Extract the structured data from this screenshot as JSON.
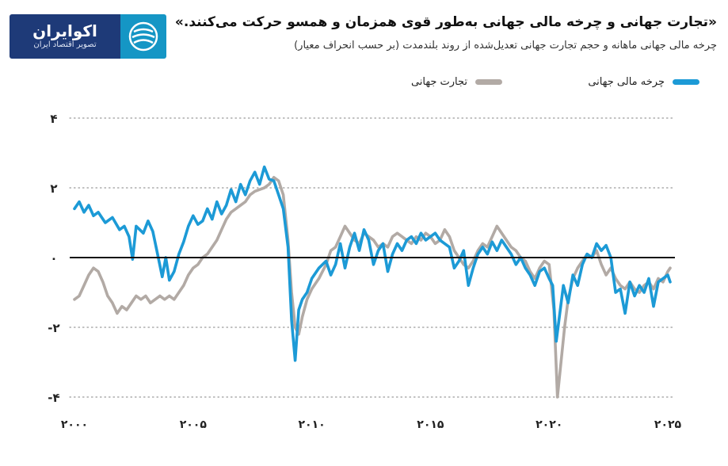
{
  "header": {
    "title": "«تجارت جهانی و چرخه مالی جهانی به‌طور قوی همزمان و همسو حرکت می‌کنند.»",
    "subtitle": "چرخه مالی جهانی ماهانه و حجم تجارت جهانی تعدیل‌شده از روند بلندمدت (بر حسب انحراف معیار)"
  },
  "logo": {
    "name": "اکوایران",
    "tagline": "تصویر اقتصاد ایران"
  },
  "colors": {
    "financial_cycle": "#1c9ad6",
    "world_trade": "#b2aaa5",
    "zero_line": "#111111",
    "grid": "#9a9a9a",
    "brand_dark": "#1e3a78",
    "brand_light": "#1596c5"
  },
  "chart_data": {
    "type": "line",
    "title": "«تجارت جهانی و چرخه مالی جهانی به‌طور قوی همزمان و همسو حرکت می‌کنند.»",
    "subtitle": "چرخه مالی جهانی ماهانه و حجم تجارت جهانی تعدیل‌شده از روند بلندمدت (بر حسب انحراف معیار)",
    "xlim": [
      1999.8,
      2025.3
    ],
    "ylim": [
      -4.5,
      4.5
    ],
    "x_ticks": [
      2000,
      2005,
      2010,
      2015,
      2020,
      2025
    ],
    "x_tick_labels": [
      "۲۰۰۰",
      "۲۰۰۵",
      "۲۰۱۰",
      "۲۰۱۵",
      "۲۰۲۰",
      "۲۰۲۵"
    ],
    "y_ticks": [
      4,
      2,
      0,
      -2,
      -4
    ],
    "y_tick_labels": [
      "۴",
      "۲",
      "۰",
      "-۲",
      "-۴"
    ],
    "grid": "dotted horizontal",
    "legend_position": "top",
    "series": [
      {
        "name": "چرخه مالی جهانی",
        "color": "#1c9ad6",
        "points": [
          [
            2000.0,
            1.4
          ],
          [
            2000.2,
            1.6
          ],
          [
            2000.4,
            1.3
          ],
          [
            2000.6,
            1.5
          ],
          [
            2000.8,
            1.2
          ],
          [
            2001.0,
            1.3
          ],
          [
            2001.3,
            1.0
          ],
          [
            2001.6,
            1.15
          ],
          [
            2001.9,
            0.8
          ],
          [
            2002.1,
            0.9
          ],
          [
            2002.3,
            0.6
          ],
          [
            2002.45,
            -0.05
          ],
          [
            2002.6,
            0.9
          ],
          [
            2002.9,
            0.7
          ],
          [
            2003.1,
            1.05
          ],
          [
            2003.3,
            0.75
          ],
          [
            2003.5,
            0.1
          ],
          [
            2003.7,
            -0.55
          ],
          [
            2003.85,
            0.0
          ],
          [
            2004.0,
            -0.65
          ],
          [
            2004.2,
            -0.4
          ],
          [
            2004.4,
            0.1
          ],
          [
            2004.6,
            0.45
          ],
          [
            2004.8,
            0.9
          ],
          [
            2005.0,
            1.2
          ],
          [
            2005.2,
            0.95
          ],
          [
            2005.4,
            1.05
          ],
          [
            2005.6,
            1.4
          ],
          [
            2005.8,
            1.1
          ],
          [
            2006.0,
            1.6
          ],
          [
            2006.2,
            1.25
          ],
          [
            2006.4,
            1.5
          ],
          [
            2006.6,
            1.95
          ],
          [
            2006.8,
            1.6
          ],
          [
            2007.0,
            2.1
          ],
          [
            2007.2,
            1.8
          ],
          [
            2007.4,
            2.2
          ],
          [
            2007.6,
            2.45
          ],
          [
            2007.8,
            2.1
          ],
          [
            2008.0,
            2.6
          ],
          [
            2008.2,
            2.25
          ],
          [
            2008.4,
            2.2
          ],
          [
            2008.6,
            1.8
          ],
          [
            2008.8,
            1.4
          ],
          [
            2009.0,
            0.3
          ],
          [
            2009.15,
            -1.8
          ],
          [
            2009.3,
            -2.95
          ],
          [
            2009.45,
            -1.5
          ],
          [
            2009.6,
            -1.2
          ],
          [
            2009.8,
            -1.0
          ],
          [
            2010.0,
            -0.6
          ],
          [
            2010.3,
            -0.3
          ],
          [
            2010.6,
            -0.1
          ],
          [
            2010.8,
            -0.5
          ],
          [
            2011.0,
            -0.2
          ],
          [
            2011.2,
            0.4
          ],
          [
            2011.4,
            -0.3
          ],
          [
            2011.6,
            0.3
          ],
          [
            2011.8,
            0.7
          ],
          [
            2012.0,
            0.2
          ],
          [
            2012.2,
            0.8
          ],
          [
            2012.4,
            0.5
          ],
          [
            2012.6,
            -0.2
          ],
          [
            2012.8,
            0.2
          ],
          [
            2013.0,
            0.4
          ],
          [
            2013.2,
            -0.4
          ],
          [
            2013.4,
            0.1
          ],
          [
            2013.6,
            0.4
          ],
          [
            2013.8,
            0.2
          ],
          [
            2014.0,
            0.5
          ],
          [
            2014.2,
            0.6
          ],
          [
            2014.4,
            0.4
          ],
          [
            2014.6,
            0.7
          ],
          [
            2014.8,
            0.5
          ],
          [
            2015.0,
            0.6
          ],
          [
            2015.2,
            0.7
          ],
          [
            2015.4,
            0.5
          ],
          [
            2015.6,
            0.4
          ],
          [
            2015.8,
            0.3
          ],
          [
            2016.0,
            -0.3
          ],
          [
            2016.2,
            -0.1
          ],
          [
            2016.4,
            0.2
          ],
          [
            2016.6,
            -0.8
          ],
          [
            2016.8,
            -0.3
          ],
          [
            2017.0,
            0.1
          ],
          [
            2017.2,
            0.3
          ],
          [
            2017.4,
            0.1
          ],
          [
            2017.6,
            0.45
          ],
          [
            2017.8,
            0.2
          ],
          [
            2018.0,
            0.5
          ],
          [
            2018.2,
            0.3
          ],
          [
            2018.4,
            0.1
          ],
          [
            2018.6,
            -0.2
          ],
          [
            2018.8,
            0.0
          ],
          [
            2019.0,
            -0.3
          ],
          [
            2019.2,
            -0.5
          ],
          [
            2019.4,
            -0.8
          ],
          [
            2019.6,
            -0.4
          ],
          [
            2019.8,
            -0.3
          ],
          [
            2020.0,
            -0.6
          ],
          [
            2020.15,
            -0.8
          ],
          [
            2020.3,
            -2.4
          ],
          [
            2020.45,
            -1.6
          ],
          [
            2020.6,
            -0.8
          ],
          [
            2020.8,
            -1.3
          ],
          [
            2021.0,
            -0.5
          ],
          [
            2021.2,
            -0.8
          ],
          [
            2021.4,
            -0.2
          ],
          [
            2021.6,
            0.1
          ],
          [
            2021.8,
            0.0
          ],
          [
            2022.0,
            0.4
          ],
          [
            2022.2,
            0.2
          ],
          [
            2022.4,
            0.35
          ],
          [
            2022.6,
            0.0
          ],
          [
            2022.8,
            -1.0
          ],
          [
            2023.0,
            -0.9
          ],
          [
            2023.2,
            -1.6
          ],
          [
            2023.4,
            -0.7
          ],
          [
            2023.6,
            -1.1
          ],
          [
            2023.8,
            -0.8
          ],
          [
            2024.0,
            -1.0
          ],
          [
            2024.2,
            -0.6
          ],
          [
            2024.4,
            -1.4
          ],
          [
            2024.6,
            -0.7
          ],
          [
            2024.8,
            -0.6
          ],
          [
            2025.0,
            -0.5
          ],
          [
            2025.1,
            -0.7
          ]
        ]
      },
      {
        "name": "تجارت جهانی",
        "color": "#b2aaa5",
        "points": [
          [
            2000.0,
            -1.2
          ],
          [
            2000.2,
            -1.1
          ],
          [
            2000.4,
            -0.8
          ],
          [
            2000.6,
            -0.5
          ],
          [
            2000.8,
            -0.3
          ],
          [
            2001.0,
            -0.4
          ],
          [
            2001.2,
            -0.7
          ],
          [
            2001.4,
            -1.1
          ],
          [
            2001.6,
            -1.3
          ],
          [
            2001.8,
            -1.6
          ],
          [
            2002.0,
            -1.4
          ],
          [
            2002.2,
            -1.5
          ],
          [
            2002.4,
            -1.3
          ],
          [
            2002.6,
            -1.1
          ],
          [
            2002.8,
            -1.2
          ],
          [
            2003.0,
            -1.1
          ],
          [
            2003.2,
            -1.3
          ],
          [
            2003.4,
            -1.2
          ],
          [
            2003.6,
            -1.1
          ],
          [
            2003.8,
            -1.2
          ],
          [
            2004.0,
            -1.1
          ],
          [
            2004.2,
            -1.2
          ],
          [
            2004.4,
            -1.0
          ],
          [
            2004.6,
            -0.8
          ],
          [
            2004.8,
            -0.5
          ],
          [
            2005.0,
            -0.3
          ],
          [
            2005.2,
            -0.2
          ],
          [
            2005.4,
            0.0
          ],
          [
            2005.6,
            0.1
          ],
          [
            2005.8,
            0.3
          ],
          [
            2006.0,
            0.5
          ],
          [
            2006.2,
            0.8
          ],
          [
            2006.4,
            1.1
          ],
          [
            2006.6,
            1.3
          ],
          [
            2006.8,
            1.4
          ],
          [
            2007.0,
            1.5
          ],
          [
            2007.2,
            1.6
          ],
          [
            2007.4,
            1.8
          ],
          [
            2007.6,
            1.9
          ],
          [
            2007.8,
            1.95
          ],
          [
            2008.0,
            2.0
          ],
          [
            2008.2,
            2.1
          ],
          [
            2008.4,
            2.3
          ],
          [
            2008.6,
            2.2
          ],
          [
            2008.8,
            1.8
          ],
          [
            2009.0,
            0.5
          ],
          [
            2009.15,
            -1.0
          ],
          [
            2009.3,
            -2.0
          ],
          [
            2009.45,
            -2.2
          ],
          [
            2009.6,
            -1.7
          ],
          [
            2009.8,
            -1.2
          ],
          [
            2010.0,
            -0.9
          ],
          [
            2010.3,
            -0.6
          ],
          [
            2010.6,
            -0.2
          ],
          [
            2010.8,
            0.2
          ],
          [
            2011.0,
            0.3
          ],
          [
            2011.2,
            0.6
          ],
          [
            2011.4,
            0.9
          ],
          [
            2011.6,
            0.7
          ],
          [
            2011.8,
            0.5
          ],
          [
            2012.0,
            0.4
          ],
          [
            2012.2,
            0.7
          ],
          [
            2012.4,
            0.6
          ],
          [
            2012.6,
            0.5
          ],
          [
            2012.8,
            0.3
          ],
          [
            2013.0,
            0.4
          ],
          [
            2013.2,
            0.3
          ],
          [
            2013.4,
            0.6
          ],
          [
            2013.6,
            0.7
          ],
          [
            2013.8,
            0.6
          ],
          [
            2014.0,
            0.5
          ],
          [
            2014.2,
            0.4
          ],
          [
            2014.4,
            0.6
          ],
          [
            2014.6,
            0.5
          ],
          [
            2014.8,
            0.7
          ],
          [
            2015.0,
            0.6
          ],
          [
            2015.2,
            0.4
          ],
          [
            2015.4,
            0.5
          ],
          [
            2015.6,
            0.8
          ],
          [
            2015.8,
            0.6
          ],
          [
            2016.0,
            0.2
          ],
          [
            2016.2,
            0.0
          ],
          [
            2016.4,
            -0.2
          ],
          [
            2016.6,
            -0.3
          ],
          [
            2016.8,
            -0.1
          ],
          [
            2017.0,
            0.2
          ],
          [
            2017.2,
            0.4
          ],
          [
            2017.4,
            0.3
          ],
          [
            2017.6,
            0.6
          ],
          [
            2017.8,
            0.9
          ],
          [
            2018.0,
            0.7
          ],
          [
            2018.2,
            0.5
          ],
          [
            2018.4,
            0.3
          ],
          [
            2018.6,
            0.2
          ],
          [
            2018.8,
            0.0
          ],
          [
            2019.0,
            -0.1
          ],
          [
            2019.2,
            -0.4
          ],
          [
            2019.4,
            -0.6
          ],
          [
            2019.6,
            -0.3
          ],
          [
            2019.8,
            -0.1
          ],
          [
            2020.0,
            -0.2
          ],
          [
            2020.2,
            -1.5
          ],
          [
            2020.35,
            -4.0
          ],
          [
            2020.5,
            -3.0
          ],
          [
            2020.65,
            -2.0
          ],
          [
            2020.8,
            -1.2
          ],
          [
            2021.0,
            -0.6
          ],
          [
            2021.2,
            -0.3
          ],
          [
            2021.4,
            -0.1
          ],
          [
            2021.6,
            0.1
          ],
          [
            2021.8,
            0.0
          ],
          [
            2022.0,
            0.2
          ],
          [
            2022.2,
            -0.2
          ],
          [
            2022.4,
            -0.5
          ],
          [
            2022.6,
            -0.3
          ],
          [
            2022.8,
            -0.6
          ],
          [
            2023.0,
            -0.8
          ],
          [
            2023.2,
            -0.9
          ],
          [
            2023.4,
            -0.7
          ],
          [
            2023.6,
            -0.9
          ],
          [
            2023.8,
            -1.0
          ],
          [
            2024.0,
            -0.8
          ],
          [
            2024.2,
            -0.7
          ],
          [
            2024.4,
            -0.9
          ],
          [
            2024.6,
            -0.6
          ],
          [
            2024.8,
            -0.7
          ],
          [
            2025.0,
            -0.4
          ],
          [
            2025.1,
            -0.3
          ]
        ]
      }
    ]
  }
}
